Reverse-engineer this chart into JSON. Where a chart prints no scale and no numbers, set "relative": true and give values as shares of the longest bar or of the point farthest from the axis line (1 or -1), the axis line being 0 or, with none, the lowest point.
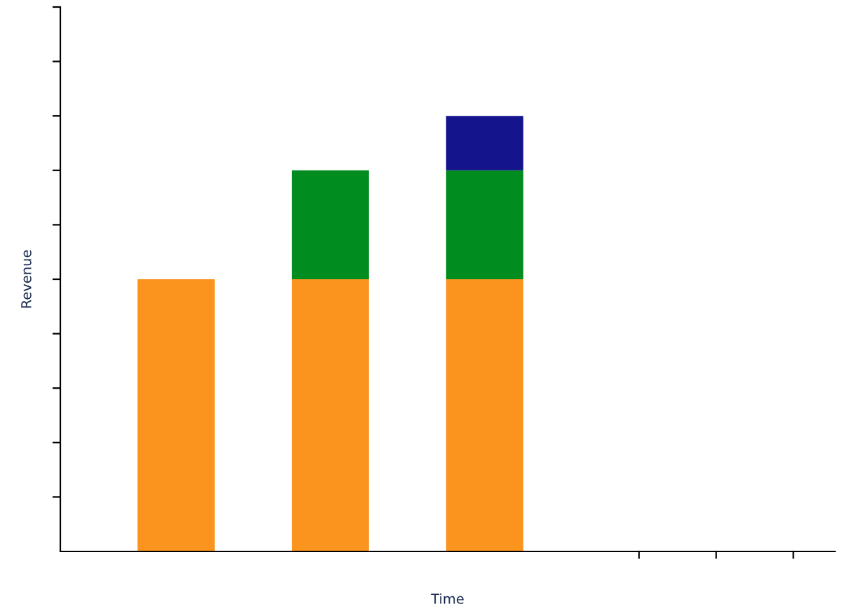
{
  "chart_data": {
    "type": "bar",
    "stacked": true,
    "relative": true,
    "xlabel": "Time",
    "ylabel": "Revenue",
    "categories": [
      null,
      null,
      null
    ],
    "series": [
      {
        "color": "#fb941f",
        "values": [
          0.625,
          0.625,
          0.625
        ]
      },
      {
        "color": "#008c1e",
        "values": [
          null,
          0.25,
          0.25
        ]
      },
      {
        "color": "#14148c",
        "values": [
          null,
          null,
          0.125
        ]
      }
    ],
    "grid": false,
    "legend": false
  }
}
